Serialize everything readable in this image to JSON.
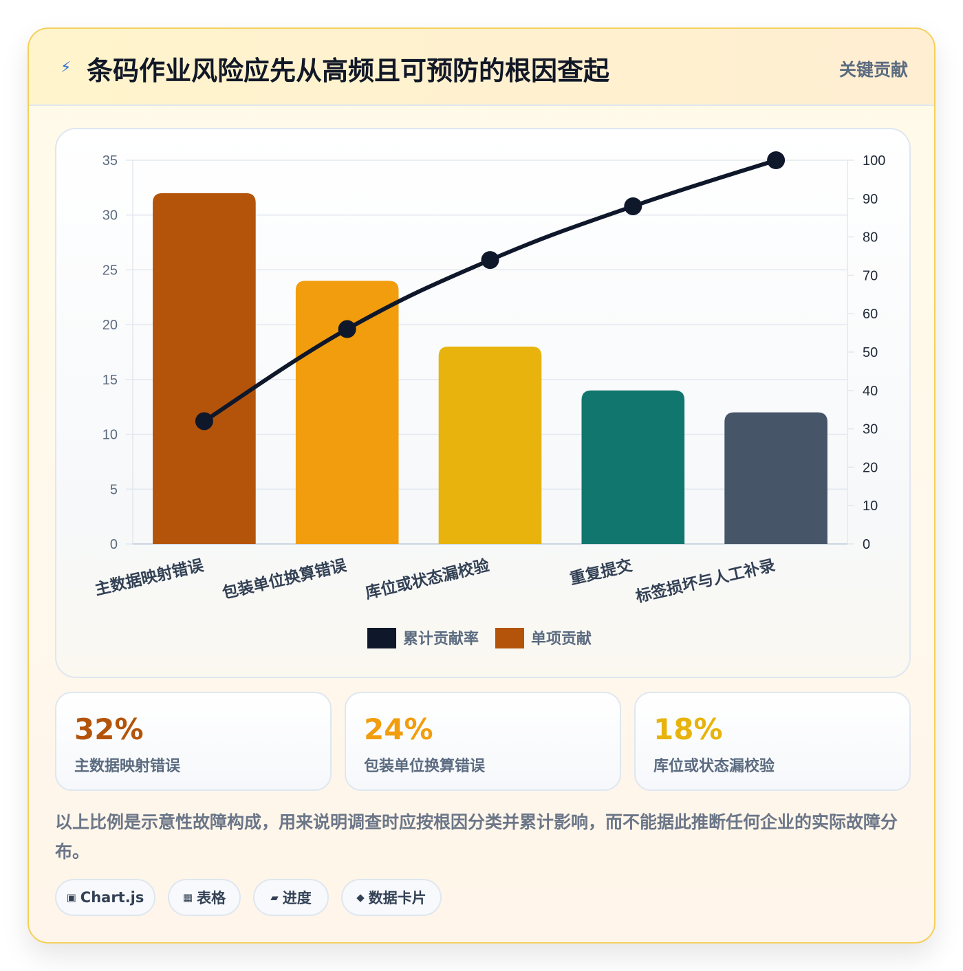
{
  "header": {
    "icon": "lightning-icon",
    "title": "条码作业风险应先从高频且可预防的根因查起",
    "badge": "关键贡献"
  },
  "chart_data": {
    "type": "bar",
    "categories": [
      "主数据映射错误",
      "包装单位换算错误",
      "库位或状态漏校验",
      "重复提交",
      "标签损坏与人工补录"
    ],
    "series": [
      {
        "name": "单项贡献",
        "type": "bar",
        "axis": "left",
        "values": [
          32,
          24,
          18,
          14,
          12
        ],
        "colors": [
          "#b4540a",
          "#f19d0e",
          "#e7b30c",
          "#11766d",
          "#475569"
        ]
      },
      {
        "name": "累计贡献率",
        "type": "line",
        "axis": "right",
        "values": [
          32,
          56,
          74,
          88,
          100
        ],
        "color": "#0f172a"
      }
    ],
    "ylim": [
      0,
      35
    ],
    "yticks": [
      0,
      5,
      10,
      15,
      20,
      25,
      30,
      35
    ],
    "y2lim": [
      0,
      100
    ],
    "y2ticks": [
      0,
      10,
      20,
      30,
      40,
      50,
      60,
      70,
      80,
      90,
      100
    ],
    "legend_position": "bottom",
    "grid": true
  },
  "legend": [
    {
      "label": "累计贡献率",
      "color": "#0f172a"
    },
    {
      "label": "单项贡献",
      "color": "#b4540a"
    }
  ],
  "stats": [
    {
      "value": "32%",
      "label": "主数据映射错误",
      "color": "#b4540a"
    },
    {
      "value": "24%",
      "label": "包装单位换算错误",
      "color": "#f19d0e"
    },
    {
      "value": "18%",
      "label": "库位或状态漏校验",
      "color": "#e7b30c"
    }
  ],
  "footnote": "以上比例是示意性故障构成，用来说明调查时应按根因分类并累计影响，而不能据此推断任何企业的实际故障分布。",
  "tags": [
    {
      "icon": "▣",
      "label": "Chart.js"
    },
    {
      "icon": "▦",
      "label": "表格"
    },
    {
      "icon": "▰",
      "label": "进度"
    },
    {
      "icon": "◆",
      "label": "数据卡片"
    }
  ]
}
